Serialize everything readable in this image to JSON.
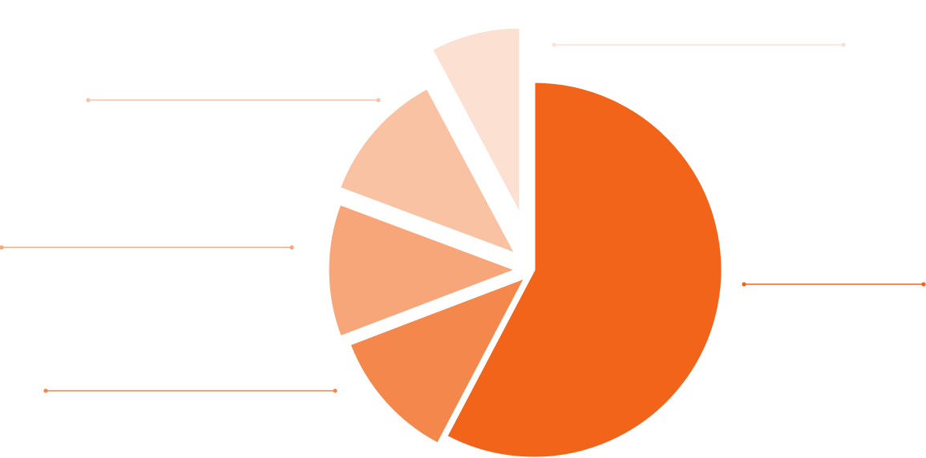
{
  "chart_data": {
    "type": "pie",
    "title": "",
    "categories": [
      "",
      "",
      "",
      "",
      ""
    ],
    "values": [
      57.7,
      11.5,
      11.5,
      11.5,
      7.8
    ],
    "colors": [
      "#F26419",
      "#F4874B",
      "#F7A679",
      "#F9C2A2",
      "#FCE1D3"
    ],
    "callout_colors": [
      "#F26419",
      "#F4874B",
      "#F7A679",
      "#F9C2A2",
      "#FCE1D3"
    ],
    "exploded": [
      false,
      true,
      true,
      true,
      true
    ],
    "legend": "none",
    "data_labels": "none"
  }
}
